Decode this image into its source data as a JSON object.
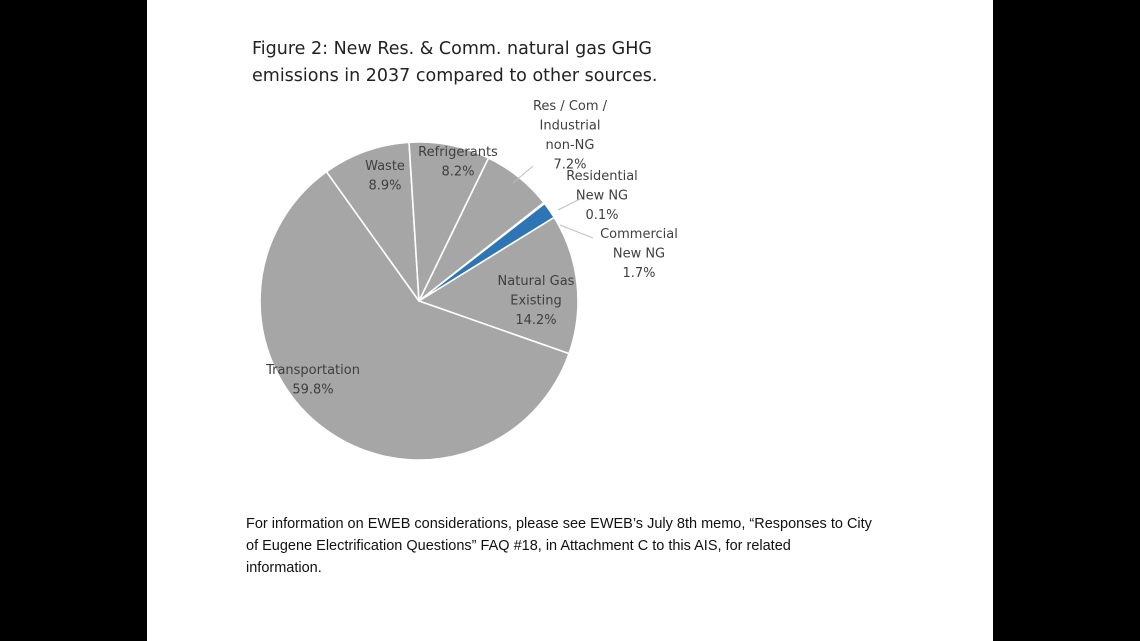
{
  "chart_data": {
    "type": "pie",
    "title_lines": [
      "Figure 2: New Res. & Comm. natural gas GHG",
      "emissions in 2037 compared to other sources."
    ],
    "slices": [
      {
        "label": [
          "Res / Com /",
          "Industrial",
          "non-NG"
        ],
        "value": 7.2,
        "value_label": "7.2%",
        "color": "#a6a6a6"
      },
      {
        "label": [
          "Residential",
          "New NG"
        ],
        "value": 0.1,
        "value_label": "0.1%",
        "color": "#a6a6a6"
      },
      {
        "label": [
          "Commercial",
          "New NG"
        ],
        "value": 1.7,
        "value_label": "1.7%",
        "color": "#2e75b6"
      },
      {
        "label": [
          "Natural Gas",
          "Existing"
        ],
        "value": 14.2,
        "value_label": "14.2%",
        "color": "#a6a6a6"
      },
      {
        "label": [
          "Transportation"
        ],
        "value": 59.8,
        "value_label": "59.8%",
        "color": "#a6a6a6"
      },
      {
        "label": [
          "Waste"
        ],
        "value": 8.9,
        "value_label": "8.9%",
        "color": "#a6a6a6"
      },
      {
        "label": [
          "Refrigerants"
        ],
        "value": 8.2,
        "value_label": "8.2%",
        "color": "#a6a6a6"
      }
    ]
  },
  "footnote_lines": [
    "For information on EWEB considerations, please see EWEB’s July 8th memo, “Responses to City",
    "of Eugene Electrification Questions” FAQ #18, in Attachment C to this AIS, for related",
    "information."
  ]
}
